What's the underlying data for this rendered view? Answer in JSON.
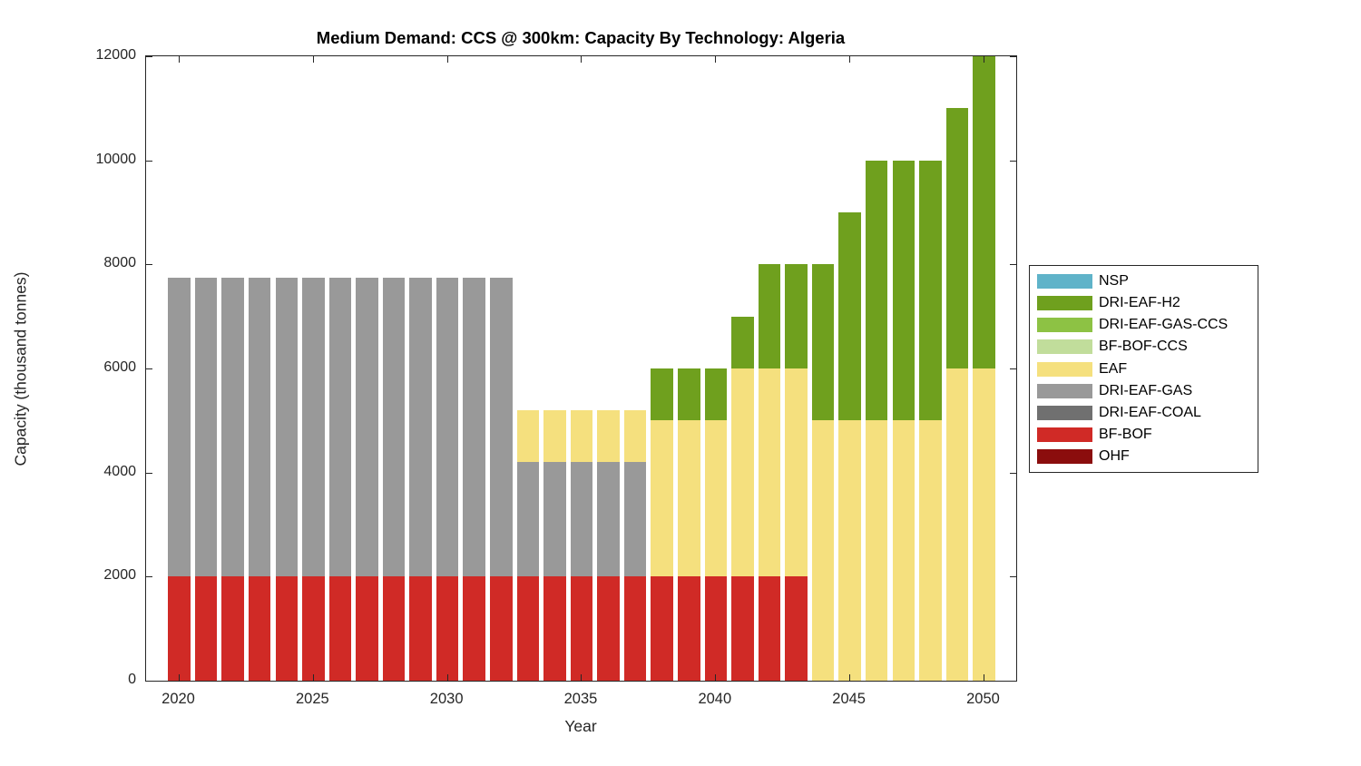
{
  "figure": {
    "background": "#ffffff",
    "axis_color": "#262626",
    "tick_label_color": "#262626"
  },
  "chart_data": {
    "type": "bar",
    "stacked": true,
    "title": "Medium Demand: CCS @ 300km: Capacity By Technology: Algeria",
    "xlabel": "Year",
    "ylabel": "Capacity (thousand tonnes)",
    "ylim": [
      0,
      12000
    ],
    "xlim": [
      2018.8,
      2051.2
    ],
    "yticks": [
      0,
      2000,
      4000,
      6000,
      8000,
      10000,
      12000
    ],
    "xticks": [
      2020,
      2025,
      2030,
      2035,
      2040,
      2045,
      2050
    ],
    "grid": false,
    "box": true,
    "categories": [
      2020,
      2021,
      2022,
      2023,
      2024,
      2025,
      2026,
      2027,
      2028,
      2029,
      2030,
      2031,
      2032,
      2033,
      2034,
      2035,
      2036,
      2037,
      2038,
      2039,
      2040,
      2041,
      2042,
      2043,
      2044,
      2045,
      2046,
      2047,
      2048,
      2049,
      2050
    ],
    "series": [
      {
        "name": "OHF",
        "color": "#8B0D0D",
        "values": [
          0,
          0,
          0,
          0,
          0,
          0,
          0,
          0,
          0,
          0,
          0,
          0,
          0,
          0,
          0,
          0,
          0,
          0,
          0,
          0,
          0,
          0,
          0,
          0,
          0,
          0,
          0,
          0,
          0,
          0,
          0
        ]
      },
      {
        "name": "BF-BOF",
        "color": "#D02A26",
        "values": [
          2000,
          2000,
          2000,
          2000,
          2000,
          2000,
          2000,
          2000,
          2000,
          2000,
          2000,
          2000,
          2000,
          2000,
          2000,
          2000,
          2000,
          2000,
          2000,
          2000,
          2000,
          2000,
          2000,
          2000,
          0,
          0,
          0,
          0,
          0,
          0,
          0
        ]
      },
      {
        "name": "DRI-EAF-COAL",
        "color": "#707070",
        "values": [
          0,
          0,
          0,
          0,
          0,
          0,
          0,
          0,
          0,
          0,
          0,
          0,
          0,
          0,
          0,
          0,
          0,
          0,
          0,
          0,
          0,
          0,
          0,
          0,
          0,
          0,
          0,
          0,
          0,
          0,
          0
        ]
      },
      {
        "name": "DRI-EAF-GAS",
        "color": "#999999",
        "values": [
          5750,
          5750,
          5750,
          5750,
          5750,
          5750,
          5750,
          5750,
          5750,
          5750,
          5750,
          5750,
          5750,
          2200,
          2200,
          2200,
          2200,
          2200,
          0,
          0,
          0,
          0,
          0,
          0,
          0,
          0,
          0,
          0,
          0,
          0,
          0
        ]
      },
      {
        "name": "EAF",
        "color": "#F5E07E",
        "values": [
          0,
          0,
          0,
          0,
          0,
          0,
          0,
          0,
          0,
          0,
          0,
          0,
          0,
          1000,
          1000,
          1000,
          1000,
          1000,
          3000,
          3000,
          3000,
          4000,
          4000,
          4000,
          5000,
          5000,
          5000,
          5000,
          5000,
          6000,
          6000
        ]
      },
      {
        "name": "BF-BOF-CCS",
        "color": "#C1DD9B",
        "values": [
          0,
          0,
          0,
          0,
          0,
          0,
          0,
          0,
          0,
          0,
          0,
          0,
          0,
          0,
          0,
          0,
          0,
          0,
          0,
          0,
          0,
          0,
          0,
          0,
          0,
          0,
          0,
          0,
          0,
          0,
          0
        ]
      },
      {
        "name": "DRI-EAF-GAS-CCS",
        "color": "#8DC244",
        "values": [
          0,
          0,
          0,
          0,
          0,
          0,
          0,
          0,
          0,
          0,
          0,
          0,
          0,
          0,
          0,
          0,
          0,
          0,
          0,
          0,
          0,
          0,
          0,
          0,
          0,
          0,
          0,
          0,
          0,
          0,
          0
        ]
      },
      {
        "name": "DRI-EAF-H2",
        "color": "#6FA01E",
        "values": [
          0,
          0,
          0,
          0,
          0,
          0,
          0,
          0,
          0,
          0,
          0,
          0,
          0,
          0,
          0,
          0,
          0,
          0,
          1000,
          1000,
          1000,
          1000,
          2000,
          2000,
          3000,
          4000,
          5000,
          5000,
          5000,
          5000,
          6000
        ]
      },
      {
        "name": "NSP",
        "color": "#5FB3C9",
        "values": [
          0,
          0,
          0,
          0,
          0,
          0,
          0,
          0,
          0,
          0,
          0,
          0,
          0,
          0,
          0,
          0,
          0,
          0,
          0,
          0,
          0,
          0,
          0,
          0,
          0,
          0,
          0,
          0,
          0,
          0,
          0
        ]
      }
    ],
    "legend": {
      "position": "outside-right",
      "entries_top_to_bottom": [
        "NSP",
        "DRI-EAF-H2",
        "DRI-EAF-GAS-CCS",
        "BF-BOF-CCS",
        "EAF",
        "DRI-EAF-GAS",
        "DRI-EAF-COAL",
        "BF-BOF",
        "OHF"
      ]
    }
  }
}
